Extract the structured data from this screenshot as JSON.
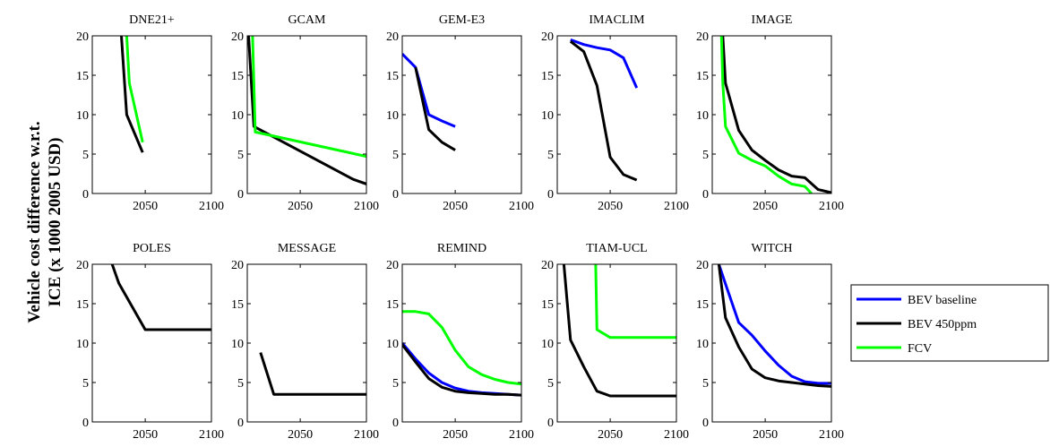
{
  "figure": {
    "ylabel_line1": "Vehicle cost difference w.r.t.",
    "ylabel_line2": "ICE (x 1000 2005 USD)"
  },
  "legend": [
    {
      "name": "BEV baseline",
      "color": "#0000ff"
    },
    {
      "name": "BEV 450ppm",
      "color": "#000000"
    },
    {
      "name": "FCV",
      "color": "#00ff00"
    }
  ],
  "chart_data": [
    {
      "type": "line",
      "title": "DNE21+",
      "xlim": [
        2010,
        2100
      ],
      "ylim": [
        0,
        20
      ],
      "xticks": [
        2050,
        2100
      ],
      "yticks": [
        0,
        5,
        10,
        15,
        20
      ],
      "series": [
        {
          "name": "BEV 450ppm",
          "x": [
            2032,
            2036,
            2048
          ],
          "y": [
            20,
            10,
            5.2
          ]
        },
        {
          "name": "FCV",
          "x": [
            2036,
            2038,
            2048
          ],
          "y": [
            20,
            14,
            6.5
          ]
        }
      ]
    },
    {
      "type": "line",
      "title": "GCAM",
      "xlim": [
        2010,
        2100
      ],
      "ylim": [
        0,
        20
      ],
      "xticks": [
        2050,
        2100
      ],
      "yticks": [
        0,
        5,
        10,
        15,
        20
      ],
      "series": [
        {
          "name": "BEV 450ppm",
          "x": [
            2011,
            2015,
            2090,
            2100
          ],
          "y": [
            20,
            8.5,
            1.8,
            1.2
          ]
        },
        {
          "name": "FCV",
          "x": [
            2014,
            2016,
            2100
          ],
          "y": [
            20,
            7.8,
            4.7
          ]
        }
      ]
    },
    {
      "type": "line",
      "title": "GEM-E3",
      "xlim": [
        2010,
        2100
      ],
      "ylim": [
        0,
        20
      ],
      "xticks": [
        2050,
        2100
      ],
      "yticks": [
        0,
        5,
        10,
        15,
        20
      ],
      "series": [
        {
          "name": "BEV baseline",
          "x": [
            2010,
            2020,
            2030,
            2040,
            2050
          ],
          "y": [
            17.7,
            16,
            10,
            9.2,
            8.5
          ]
        },
        {
          "name": "BEV 450ppm",
          "x": [
            2020,
            2030,
            2040,
            2050
          ],
          "y": [
            16,
            8.1,
            6.5,
            5.5
          ]
        }
      ]
    },
    {
      "type": "line",
      "title": "IMACLIM",
      "xlim": [
        2010,
        2100
      ],
      "ylim": [
        0,
        20
      ],
      "xticks": [
        2050,
        2100
      ],
      "yticks": [
        0,
        5,
        10,
        15,
        20
      ],
      "series": [
        {
          "name": "BEV baseline",
          "x": [
            2020,
            2030,
            2040,
            2050,
            2060,
            2070
          ],
          "y": [
            19.5,
            18.9,
            18.5,
            18.2,
            17.2,
            13.4
          ]
        },
        {
          "name": "BEV 450ppm",
          "x": [
            2020,
            2030,
            2040,
            2050,
            2060,
            2070
          ],
          "y": [
            19.3,
            18,
            13.7,
            4.6,
            2.4,
            1.7
          ]
        }
      ]
    },
    {
      "type": "line",
      "title": "IMAGE",
      "xlim": [
        2010,
        2100
      ],
      "ylim": [
        0,
        20
      ],
      "xticks": [
        2050,
        2100
      ],
      "yticks": [
        0,
        5,
        10,
        15,
        20
      ],
      "series": [
        {
          "name": "BEV 450ppm",
          "x": [
            2018,
            2020,
            2030,
            2040,
            2050,
            2060,
            2070,
            2080,
            2090,
            2100
          ],
          "y": [
            20,
            14,
            8,
            5.5,
            4.2,
            3.0,
            2.2,
            2.0,
            0.5,
            0.1
          ]
        },
        {
          "name": "FCV",
          "x": [
            2017,
            2018,
            2020,
            2030,
            2040,
            2050,
            2060,
            2070,
            2080,
            2085
          ],
          "y": [
            20,
            14,
            8.5,
            5.1,
            4.2,
            3.5,
            2.2,
            1.2,
            0.9,
            0
          ]
        }
      ]
    },
    {
      "type": "line",
      "title": "POLES",
      "xlim": [
        2010,
        2100
      ],
      "ylim": [
        0,
        20
      ],
      "xticks": [
        2050,
        2100
      ],
      "yticks": [
        0,
        5,
        10,
        15,
        20
      ],
      "series": [
        {
          "name": "BEV 450ppm",
          "x": [
            2025,
            2030,
            2050,
            2100
          ],
          "y": [
            20,
            17.6,
            11.7,
            11.7
          ]
        }
      ]
    },
    {
      "type": "line",
      "title": "MESSAGE",
      "xlim": [
        2010,
        2100
      ],
      "ylim": [
        0,
        20
      ],
      "xticks": [
        2050,
        2100
      ],
      "yticks": [
        0,
        5,
        10,
        15,
        20
      ],
      "series": [
        {
          "name": "BEV 450ppm",
          "x": [
            2020,
            2030,
            2100
          ],
          "y": [
            8.8,
            3.5,
            3.5
          ]
        }
      ]
    },
    {
      "type": "line",
      "title": "REMIND",
      "xlim": [
        2010,
        2100
      ],
      "ylim": [
        0,
        20
      ],
      "xticks": [
        2050,
        2100
      ],
      "yticks": [
        0,
        5,
        10,
        15,
        20
      ],
      "series": [
        {
          "name": "BEV baseline",
          "x": [
            2010,
            2020,
            2030,
            2040,
            2050,
            2060,
            2070,
            2080,
            2090,
            2100
          ],
          "y": [
            10,
            8,
            6.2,
            5.0,
            4.3,
            3.9,
            3.7,
            3.6,
            3.5,
            3.4
          ]
        },
        {
          "name": "BEV 450ppm",
          "x": [
            2010,
            2020,
            2030,
            2040,
            2050,
            2060,
            2070,
            2080,
            2090,
            2100
          ],
          "y": [
            9.8,
            7.6,
            5.5,
            4.4,
            3.9,
            3.7,
            3.6,
            3.5,
            3.5,
            3.4
          ]
        },
        {
          "name": "FCV",
          "x": [
            2010,
            2020,
            2030,
            2040,
            2050,
            2060,
            2070,
            2080,
            2090,
            2100
          ],
          "y": [
            14,
            14,
            13.7,
            12,
            9.1,
            7.0,
            6.0,
            5.4,
            5.0,
            4.8
          ]
        }
      ]
    },
    {
      "type": "line",
      "title": "TIAM-UCL",
      "xlim": [
        2010,
        2100
      ],
      "ylim": [
        0,
        20
      ],
      "xticks": [
        2050,
        2100
      ],
      "yticks": [
        0,
        5,
        10,
        15,
        20
      ],
      "series": [
        {
          "name": "BEV 450ppm",
          "x": [
            2015,
            2020,
            2030,
            2040,
            2050,
            2060,
            2100
          ],
          "y": [
            20,
            10.4,
            7,
            3.9,
            3.3,
            3.3,
            3.3
          ]
        },
        {
          "name": "FCV",
          "x": [
            2039,
            2040,
            2050,
            2100
          ],
          "y": [
            20,
            11.7,
            10.7,
            10.7
          ]
        }
      ]
    },
    {
      "type": "line",
      "title": "WITCH",
      "xlim": [
        2010,
        2100
      ],
      "ylim": [
        0,
        20
      ],
      "xticks": [
        2050,
        2100
      ],
      "yticks": [
        0,
        5,
        10,
        15,
        20
      ],
      "series": [
        {
          "name": "BEV baseline",
          "x": [
            2015,
            2020,
            2030,
            2040,
            2050,
            2060,
            2070,
            2080,
            2090,
            2100
          ],
          "y": [
            20,
            17.5,
            12.6,
            11,
            9,
            7.2,
            5.8,
            5.1,
            4.9,
            4.9
          ]
        },
        {
          "name": "BEV 450ppm",
          "x": [
            2015,
            2020,
            2030,
            2040,
            2050,
            2060,
            2070,
            2080,
            2090,
            2100
          ],
          "y": [
            20,
            13.2,
            9.5,
            6.7,
            5.6,
            5.2,
            5.0,
            4.8,
            4.6,
            4.5
          ]
        }
      ]
    }
  ]
}
